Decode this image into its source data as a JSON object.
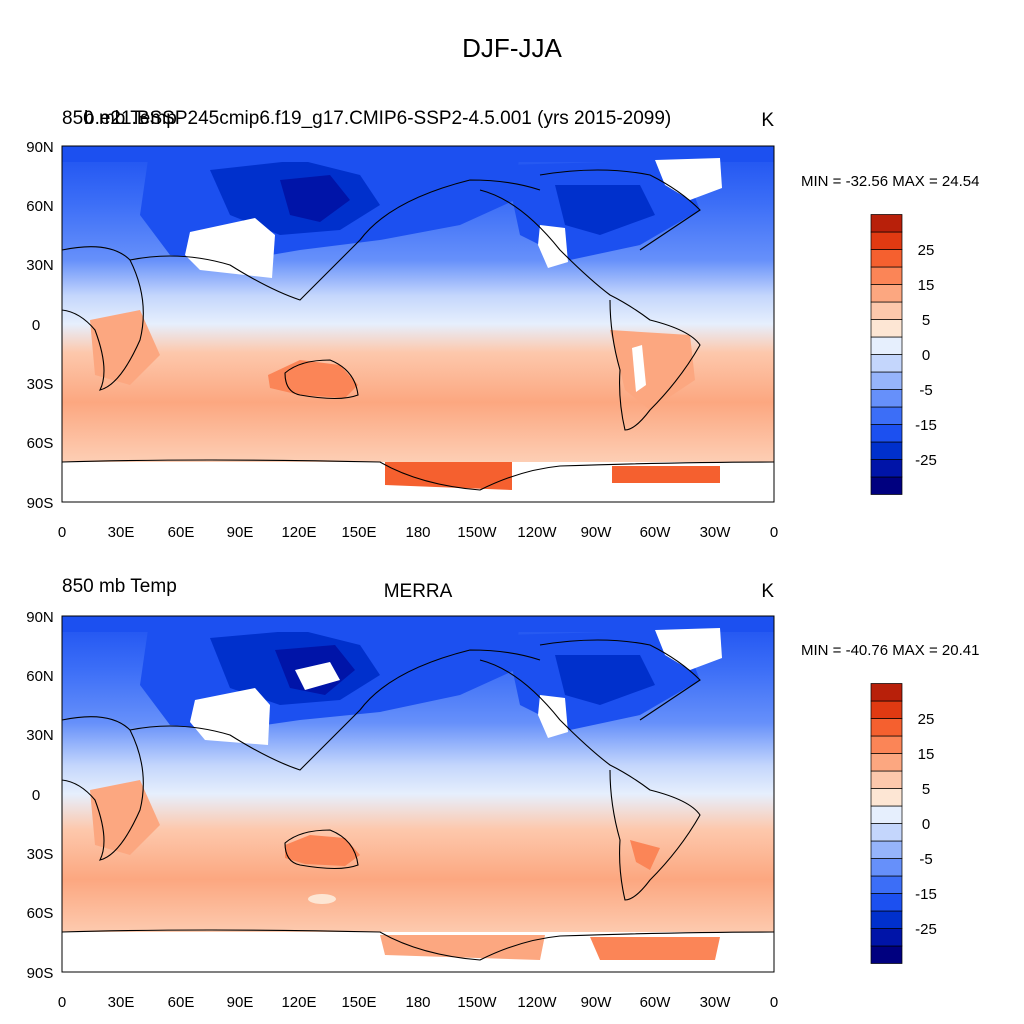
{
  "figure": {
    "title": "DJF-JJA"
  },
  "lat_labels": [
    "90N",
    "60N",
    "30N",
    "0",
    "30S",
    "60S",
    "90S"
  ],
  "lon_labels": [
    "0",
    "30E",
    "60E",
    "90E",
    "120E",
    "150E",
    "180",
    "150W",
    "120W",
    "90W",
    "60W",
    "30W",
    "0"
  ],
  "panels": [
    {
      "left_label": "850 mb Temp",
      "case_name": "b.e21.BSSP245cmip6.f19_g17.CMIP6-SSP2-4.5.001 (yrs 2015-2099)",
      "center_label": "",
      "units": "K",
      "stats": "MIN = -32.56 MAX =  24.54"
    },
    {
      "left_label": "850 mb Temp",
      "case_name": "",
      "center_label": "MERRA",
      "units": "K",
      "stats": "MIN = -40.76 MAX =  20.41"
    }
  ],
  "colorbar": {
    "colors": [
      "#00007f",
      "#0014a8",
      "#0030cc",
      "#1c50f0",
      "#3c6ef7",
      "#6690fa",
      "#96b4fb",
      "#c4d6fc",
      "#e6effd",
      "#fde6d4",
      "#fdc8ac",
      "#fca780",
      "#fb8557",
      "#f5602f",
      "#e03a12",
      "#b8200a",
      "#880000"
    ],
    "tick_labels": [
      "25",
      "15",
      "5",
      "0",
      "-5",
      "-15",
      "-25"
    ]
  }
}
